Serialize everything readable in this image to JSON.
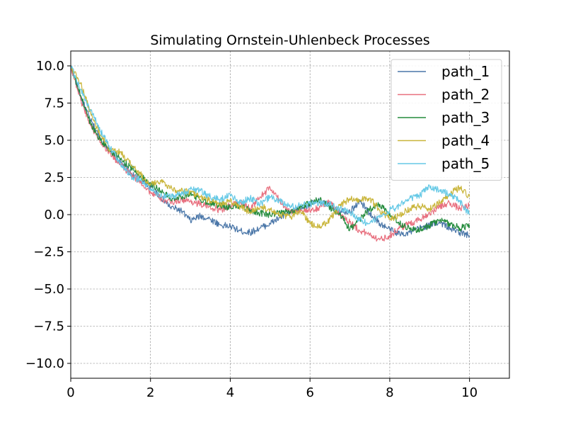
{
  "chart_data": {
    "type": "line",
    "title": "Simulating Ornstein-Uhlenbeck Processes",
    "xlabel": "",
    "ylabel": "",
    "xlim": [
      0,
      11
    ],
    "ylim": [
      -11,
      11
    ],
    "xticks": [
      0,
      2,
      4,
      6,
      8,
      10
    ],
    "xtick_labels": [
      "0",
      "2",
      "4",
      "6",
      "8",
      "10"
    ],
    "yticks": [
      10.0,
      7.5,
      5.0,
      2.5,
      0.0,
      -2.5,
      -5.0,
      -7.5,
      -10.0
    ],
    "ytick_labels": [
      "10.0",
      "7.5",
      "5.0",
      "2.5",
      "0.0",
      "−2.5",
      "−5.0",
      "−7.5",
      "−10.0"
    ],
    "grid": true,
    "legend_position": "top-right",
    "series": [
      {
        "name": "path_1",
        "color": "#4a76a8",
        "points": [
          [
            0,
            10
          ],
          [
            0.25,
            7.9
          ],
          [
            0.5,
            6.3
          ],
          [
            0.75,
            5.1
          ],
          [
            1,
            4.2
          ],
          [
            1.25,
            3.5
          ],
          [
            1.5,
            2.8
          ],
          [
            1.75,
            2.3
          ],
          [
            2,
            1.9
          ],
          [
            2.25,
            1.2
          ],
          [
            2.5,
            0.5
          ],
          [
            2.75,
            0.3
          ],
          [
            3,
            -0.4
          ],
          [
            3.25,
            -0.1
          ],
          [
            3.5,
            -0.3
          ],
          [
            3.75,
            -0.7
          ],
          [
            4,
            -0.8
          ],
          [
            4.25,
            -1.1
          ],
          [
            4.5,
            -1.2
          ],
          [
            4.75,
            -0.9
          ],
          [
            5,
            -0.6
          ],
          [
            5.25,
            -0.2
          ],
          [
            5.5,
            0.1
          ],
          [
            5.75,
            0.4
          ],
          [
            6,
            0.7
          ],
          [
            6.25,
            0.9
          ],
          [
            6.5,
            0.6
          ],
          [
            6.75,
            0.3
          ],
          [
            7,
            0.2
          ],
          [
            7.25,
            0.9
          ],
          [
            7.5,
            0.1
          ],
          [
            7.75,
            -0.6
          ],
          [
            8,
            -1.0
          ],
          [
            8.25,
            -1.3
          ],
          [
            8.5,
            -1.2
          ],
          [
            8.75,
            -0.9
          ],
          [
            9,
            -0.7
          ],
          [
            9.25,
            -0.5
          ],
          [
            9.5,
            -0.9
          ],
          [
            9.75,
            -1.2
          ],
          [
            10,
            -1.4
          ]
        ]
      },
      {
        "name": "path_2",
        "color": "#e8707f",
        "points": [
          [
            0,
            10
          ],
          [
            0.25,
            7.7
          ],
          [
            0.5,
            6.0
          ],
          [
            0.75,
            4.9
          ],
          [
            1,
            4.1
          ],
          [
            1.25,
            3.3
          ],
          [
            1.5,
            2.7
          ],
          [
            1.75,
            2.2
          ],
          [
            2,
            1.5
          ],
          [
            2.25,
            1.1
          ],
          [
            2.5,
            0.8
          ],
          [
            2.75,
            1.0
          ],
          [
            3,
            0.9
          ],
          [
            3.25,
            0.7
          ],
          [
            3.5,
            0.5
          ],
          [
            3.75,
            0.3
          ],
          [
            4,
            0.6
          ],
          [
            4.25,
            0.8
          ],
          [
            4.5,
            0.4
          ],
          [
            4.75,
            1.2
          ],
          [
            5,
            1.8
          ],
          [
            5.25,
            0.9
          ],
          [
            5.5,
            0.2
          ],
          [
            5.75,
            0.3
          ],
          [
            6,
            0.2
          ],
          [
            6.25,
            0.5
          ],
          [
            6.5,
            0.9
          ],
          [
            6.75,
            0.0
          ],
          [
            7,
            -0.5
          ],
          [
            7.25,
            -1.1
          ],
          [
            7.5,
            -1.3
          ],
          [
            7.75,
            -1.7
          ],
          [
            8,
            -1.4
          ],
          [
            8.25,
            -0.9
          ],
          [
            8.5,
            -0.6
          ],
          [
            8.75,
            -0.3
          ],
          [
            9,
            0.1
          ],
          [
            9.25,
            0.5
          ],
          [
            9.5,
            0.8
          ],
          [
            9.75,
            0.4
          ],
          [
            10,
            0.6
          ]
        ]
      },
      {
        "name": "path_3",
        "color": "#238b3c",
        "points": [
          [
            0,
            10
          ],
          [
            0.25,
            8.0
          ],
          [
            0.5,
            6.1
          ],
          [
            0.75,
            5.0
          ],
          [
            1,
            4.3
          ],
          [
            1.25,
            3.7
          ],
          [
            1.5,
            3.2
          ],
          [
            1.75,
            2.6
          ],
          [
            2,
            2.1
          ],
          [
            2.25,
            1.6
          ],
          [
            2.5,
            1.1
          ],
          [
            2.75,
            1.2
          ],
          [
            3,
            1.4
          ],
          [
            3.25,
            1.0
          ],
          [
            3.5,
            0.8
          ],
          [
            3.75,
            0.6
          ],
          [
            4,
            0.5
          ],
          [
            4.25,
            0.6
          ],
          [
            4.5,
            0.3
          ],
          [
            4.75,
            0.1
          ],
          [
            5,
            0.0
          ],
          [
            5.25,
            0.1
          ],
          [
            5.5,
            0.2
          ],
          [
            5.75,
            0.4
          ],
          [
            6,
            0.8
          ],
          [
            6.25,
            1.0
          ],
          [
            6.5,
            0.5
          ],
          [
            6.75,
            0.0
          ],
          [
            7,
            -1.0
          ],
          [
            7.25,
            -0.3
          ],
          [
            7.5,
            0.4
          ],
          [
            7.75,
            0.7
          ],
          [
            8,
            0.1
          ],
          [
            8.25,
            -0.6
          ],
          [
            8.5,
            -0.9
          ],
          [
            8.75,
            -1.1
          ],
          [
            9,
            -0.7
          ],
          [
            9.25,
            -0.4
          ],
          [
            9.5,
            -0.6
          ],
          [
            9.75,
            -0.9
          ],
          [
            10,
            -0.7
          ]
        ]
      },
      {
        "name": "path_4",
        "color": "#c9b53a",
        "points": [
          [
            0,
            10
          ],
          [
            0.25,
            8.8
          ],
          [
            0.5,
            6.8
          ],
          [
            0.75,
            5.3
          ],
          [
            1,
            4.3
          ],
          [
            1.25,
            4.2
          ],
          [
            1.5,
            3.4
          ],
          [
            1.75,
            2.7
          ],
          [
            2,
            2.0
          ],
          [
            2.25,
            2.3
          ],
          [
            2.5,
            1.8
          ],
          [
            2.75,
            1.6
          ],
          [
            3,
            1.5
          ],
          [
            3.25,
            1.2
          ],
          [
            3.5,
            0.9
          ],
          [
            3.75,
            0.7
          ],
          [
            4,
            0.9
          ],
          [
            4.25,
            0.5
          ],
          [
            4.5,
            0.2
          ],
          [
            4.75,
            0.5
          ],
          [
            5,
            0.4
          ],
          [
            5.25,
            0.0
          ],
          [
            5.5,
            -0.2
          ],
          [
            5.75,
            0.3
          ],
          [
            6,
            -0.6
          ],
          [
            6.25,
            -0.9
          ],
          [
            6.5,
            -0.3
          ],
          [
            6.75,
            0.6
          ],
          [
            7,
            1.1
          ],
          [
            7.25,
            1.0
          ],
          [
            7.5,
            1.1
          ],
          [
            7.75,
            0.3
          ],
          [
            8,
            -0.3
          ],
          [
            8.25,
            0.0
          ],
          [
            8.5,
            0.4
          ],
          [
            8.75,
            0.6
          ],
          [
            9,
            0.4
          ],
          [
            9.25,
            0.8
          ],
          [
            9.5,
            1.4
          ],
          [
            9.75,
            1.8
          ],
          [
            10,
            1.2
          ]
        ]
      },
      {
        "name": "path_5",
        "color": "#66c9e6",
        "points": [
          [
            0,
            10
          ],
          [
            0.25,
            8.4
          ],
          [
            0.5,
            7.0
          ],
          [
            0.75,
            5.6
          ],
          [
            1,
            4.5
          ],
          [
            1.25,
            3.4
          ],
          [
            1.5,
            2.6
          ],
          [
            1.75,
            2.3
          ],
          [
            2,
            1.7
          ],
          [
            2.25,
            1.3
          ],
          [
            2.5,
            1.2
          ],
          [
            2.75,
            1.4
          ],
          [
            3,
            1.7
          ],
          [
            3.25,
            1.6
          ],
          [
            3.5,
            1.2
          ],
          [
            3.75,
            1.0
          ],
          [
            4,
            1.3
          ],
          [
            4.25,
            0.8
          ],
          [
            4.5,
            1.1
          ],
          [
            4.75,
            0.7
          ],
          [
            5,
            1.2
          ],
          [
            5.25,
            0.9
          ],
          [
            5.5,
            0.5
          ],
          [
            5.75,
            0.6
          ],
          [
            6,
            0.7
          ],
          [
            6.25,
            0.8
          ],
          [
            6.5,
            0.7
          ],
          [
            6.75,
            0.4
          ],
          [
            7,
            0.2
          ],
          [
            7.25,
            -0.4
          ],
          [
            7.5,
            -0.6
          ],
          [
            7.75,
            -0.2
          ],
          [
            8,
            0.3
          ],
          [
            8.25,
            0.6
          ],
          [
            8.5,
            1.1
          ],
          [
            8.75,
            1.3
          ],
          [
            9,
            1.9
          ],
          [
            9.25,
            1.6
          ],
          [
            9.5,
            1.4
          ],
          [
            9.75,
            0.9
          ],
          [
            10,
            0.0
          ]
        ]
      }
    ]
  }
}
